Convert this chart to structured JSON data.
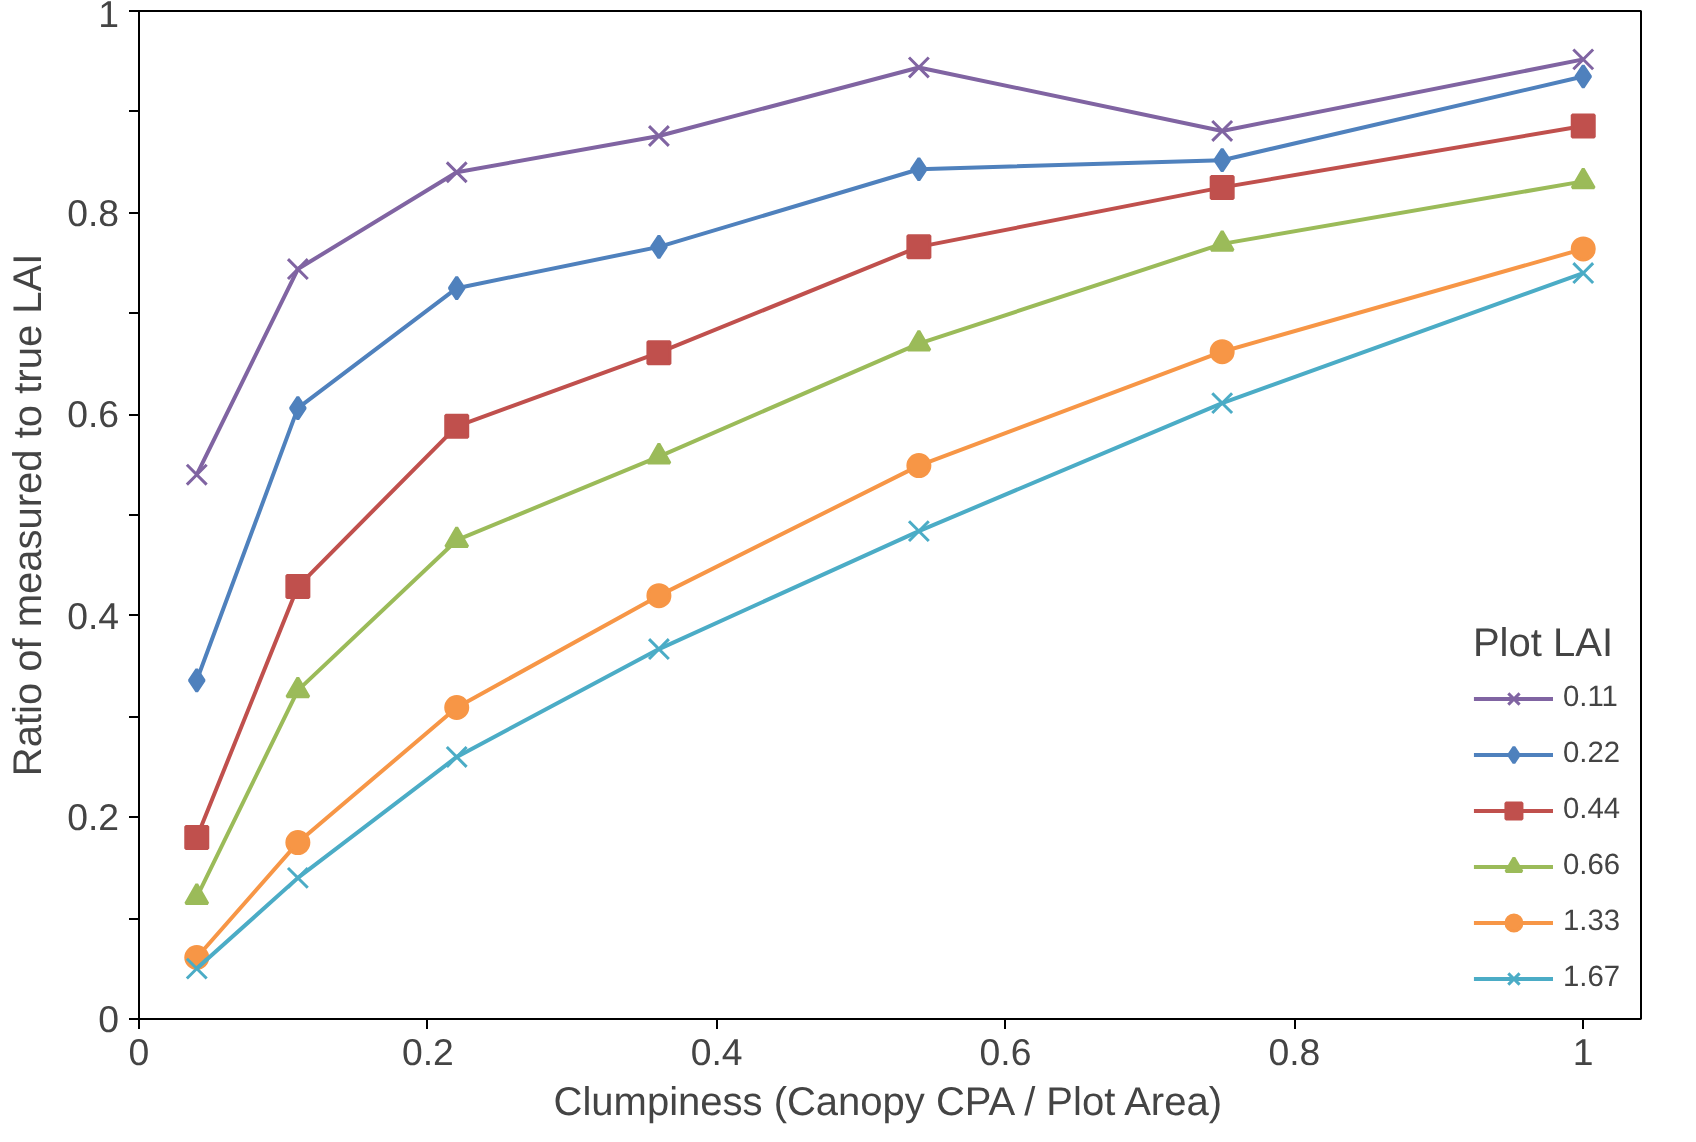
{
  "chart_data": {
    "type": "line",
    "xlabel": "Clumpiness (Canopy CPA / Plot Area)",
    "ylabel": "Ratio of measured to true LAI",
    "legend_title": "Plot LAI",
    "legend": "bottom right",
    "grid": false,
    "x": [
      0.04,
      0.11,
      0.22,
      0.36,
      0.54,
      0.75,
      1.0
    ],
    "xlim": [
      0,
      1.04
    ],
    "xticks": [
      0,
      0.2,
      0.4,
      0.6,
      0.8,
      1
    ],
    "ylim": [
      0,
      1
    ],
    "yticks": [
      0,
      {
        "value": 0.1,
        "label": null
      },
      0.2,
      {
        "value": 0.3,
        "label": null
      },
      0.4,
      {
        "value": 0.5,
        "label": null
      },
      0.6,
      {
        "value": 0.7,
        "label": null
      },
      0.8,
      {
        "value": 0.9,
        "label": null
      },
      1
    ],
    "series": [
      {
        "name": "0.11",
        "color": "#8064a2",
        "marker": "cross",
        "values": [
          0.54,
          0.744,
          0.84,
          0.876,
          0.944,
          0.881,
          0.952
        ]
      },
      {
        "name": "0.22",
        "color": "#4f81bd",
        "marker": "diamond",
        "values": [
          0.336,
          0.606,
          0.725,
          0.766,
          0.843,
          0.852,
          0.935
        ]
      },
      {
        "name": "0.44",
        "color": "#c0504d",
        "marker": "square",
        "values": [
          0.18,
          0.429,
          0.588,
          0.661,
          0.766,
          0.825,
          0.886
        ]
      },
      {
        "name": "0.66",
        "color": "#9bbb59",
        "marker": "triangle",
        "values": [
          0.121,
          0.326,
          0.475,
          0.558,
          0.67,
          0.769,
          0.831
        ]
      },
      {
        "name": "1.33",
        "color": "#f79646",
        "marker": "circle",
        "values": [
          0.061,
          0.175,
          0.309,
          0.42,
          0.549,
          0.662,
          0.764
        ]
      },
      {
        "name": "1.67",
        "color": "#4bacc6",
        "marker": "cross",
        "values": [
          0.05,
          0.14,
          0.26,
          0.367,
          0.484,
          0.611,
          0.74
        ]
      }
    ]
  }
}
